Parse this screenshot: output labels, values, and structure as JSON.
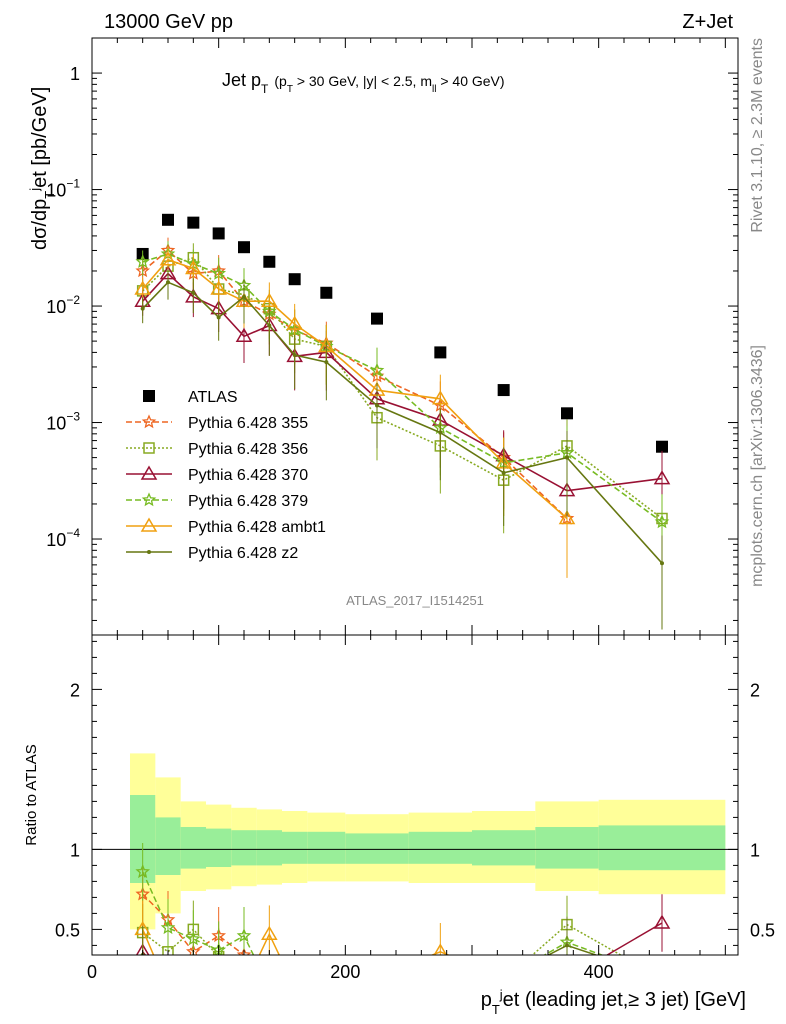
{
  "header": {
    "left": "13000 GeV pp",
    "right": "Z+Jet"
  },
  "side_labels": {
    "rivet": "Rivet 3.1.10, ≥ 2.3M events",
    "mcplots": "mcplots.cern.ch [arXiv:1306.3436]"
  },
  "analysis_label": "ATLAS_2017_I1514251",
  "chart_data": [
    {
      "type": "scatter",
      "panel": "main",
      "title_parts": {
        "main": "Jet p",
        "main_sub": "T",
        "cut_open": "(p",
        "cut_sub": "T",
        "cut_mid": " > 30 GeV, |y| < 2.5, m",
        "cut_sub2": "ll",
        "cut_close": " > 40 GeV)"
      },
      "ylabel_parts": {
        "a": "dσ/dp",
        "b": "T",
        "c": "j",
        "d": "et [pb/GeV]"
      },
      "yscale": "log",
      "ylim": [
        1.5e-05,
        2.0
      ],
      "xlim": [
        0,
        510
      ],
      "y_ticks": [
        {
          "v": 0.0001,
          "base": "10",
          "exp": "−4"
        },
        {
          "v": 0.001,
          "base": "10",
          "exp": "−3"
        },
        {
          "v": 0.01,
          "base": "10",
          "exp": "−2"
        },
        {
          "v": 0.1,
          "base": "10",
          "exp": "−1"
        },
        {
          "v": 1,
          "base": "1",
          "exp": ""
        }
      ],
      "x": [
        40,
        60,
        80,
        100,
        120,
        140,
        160,
        185,
        225,
        275,
        325,
        375,
        450
      ],
      "series": [
        {
          "name": "ATLAS",
          "marker": "square",
          "color": "#000000",
          "line": "none",
          "values": [
            0.028,
            0.055,
            0.052,
            0.042,
            0.032,
            0.024,
            0.017,
            0.013,
            0.0078,
            0.004,
            0.0019,
            0.0012,
            0.00062
          ]
        },
        {
          "name": "Pythia 6.428 355",
          "marker": "star",
          "color": "#ee6622",
          "line": "dashed",
          "values": [
            0.02,
            0.03,
            0.019,
            0.02,
            0.011,
            0.0085,
            0.0062,
            0.0048,
            0.0025,
            0.0014,
            0.0005,
            0.00015,
            null
          ]
        },
        {
          "name": "Pythia 6.428 356",
          "marker": "open-square",
          "color": "#88aa22",
          "line": "dotted",
          "values": [
            0.0135,
            0.022,
            0.026,
            0.014,
            0.0125,
            0.0095,
            0.0052,
            0.0045,
            0.0011,
            0.00063,
            0.00032,
            0.00063,
            0.00015
          ]
        },
        {
          "name": "Pythia 6.428 370",
          "marker": "open-triangle",
          "color": "#991133",
          "line": "solid",
          "values": [
            0.011,
            0.019,
            0.012,
            0.0095,
            0.0055,
            0.0068,
            0.0037,
            0.004,
            0.0016,
            0.00105,
            0.00052,
            0.00026,
            0.00033
          ]
        },
        {
          "name": "Pythia 6.428 379",
          "marker": "star",
          "color": "#77bb22",
          "line": "dashed",
          "values": [
            0.024,
            0.028,
            0.023,
            0.019,
            0.015,
            0.009,
            0.0063,
            0.0045,
            0.0028,
            0.0009,
            0.00045,
            0.00055,
            0.00014
          ]
        },
        {
          "name": "Pythia 6.428 ambt1",
          "marker": "open-triangle",
          "color": "#f0a010",
          "line": "solid",
          "values": [
            0.014,
            0.025,
            0.021,
            0.014,
            0.011,
            0.011,
            0.007,
            0.0045,
            0.0019,
            0.0016,
            0.00045,
            0.00015,
            null
          ]
        },
        {
          "name": "Pythia 6.428 z2",
          "marker": "dot",
          "color": "#667711",
          "line": "solid",
          "values": [
            0.0095,
            0.016,
            0.013,
            0.008,
            0.012,
            0.0068,
            0.0038,
            0.0033,
            0.0014,
            0.00082,
            0.00037,
            0.0005,
            6.2e-05
          ]
        }
      ]
    },
    {
      "type": "line",
      "panel": "ratio",
      "ylabel": "Ratio to ATLAS",
      "ylim": [
        0.34,
        2.34
      ],
      "xlim": [
        0,
        510
      ],
      "y_ticks": [
        {
          "v": 0.5,
          "label": "0.5"
        },
        {
          "v": 1,
          "label": "1"
        },
        {
          "v": 2,
          "label": "2"
        }
      ],
      "x_ticks": [
        {
          "v": 0,
          "label": "0"
        },
        {
          "v": 200,
          "label": "200"
        },
        {
          "v": 400,
          "label": "400"
        }
      ],
      "xlabel_parts": {
        "a": "p",
        "b": "T",
        "c": "j",
        "d": "et (leading jet,≥ 3 jet) [GeV]"
      },
      "bins": [
        30,
        50,
        70,
        90,
        110,
        130,
        150,
        170,
        200,
        250,
        300,
        350,
        400,
        500
      ],
      "band_outer": [
        [
          0.5,
          1.6
        ],
        [
          0.6,
          1.45
        ],
        [
          0.74,
          1.3
        ],
        [
          0.75,
          1.28
        ],
        [
          0.77,
          1.26
        ],
        [
          0.78,
          1.25
        ],
        [
          0.79,
          1.24
        ],
        [
          0.8,
          1.23
        ],
        [
          0.8,
          1.22
        ],
        [
          0.79,
          1.23
        ],
        [
          0.79,
          1.24
        ],
        [
          0.74,
          1.3
        ],
        [
          0.72,
          1.31
        ]
      ],
      "band_inner": [
        [
          0.79,
          1.34
        ],
        [
          0.84,
          1.2
        ],
        [
          0.88,
          1.14
        ],
        [
          0.89,
          1.13
        ],
        [
          0.9,
          1.12
        ],
        [
          0.9,
          1.12
        ],
        [
          0.91,
          1.11
        ],
        [
          0.91,
          1.11
        ],
        [
          0.91,
          1.1
        ],
        [
          0.91,
          1.11
        ],
        [
          0.9,
          1.12
        ],
        [
          0.88,
          1.14
        ],
        [
          0.87,
          1.15
        ]
      ],
      "x": [
        40,
        60,
        80,
        100,
        120,
        140,
        160,
        185,
        225,
        275,
        325,
        375,
        450
      ],
      "series": [
        {
          "name": "Pythia 6.428 355",
          "color": "#ee6622",
          "line": "dashed",
          "marker": "star",
          "values": [
            0.72,
            0.56,
            0.36,
            0.46,
            0.34,
            null,
            null,
            null,
            null,
            null,
            null,
            null,
            null
          ]
        },
        {
          "name": "Pythia 6.428 356",
          "color": "#88aa22",
          "line": "dotted",
          "marker": "open-square",
          "values": [
            0.48,
            0.36,
            0.5,
            0.33,
            null,
            null,
            null,
            null,
            null,
            null,
            null,
            0.53,
            null
          ]
        },
        {
          "name": "Pythia 6.428 370",
          "color": "#991133",
          "line": "solid",
          "marker": "open-triangle",
          "values": [
            0.36,
            null,
            null,
            null,
            null,
            null,
            null,
            null,
            null,
            null,
            null,
            null,
            0.54
          ]
        },
        {
          "name": "Pythia 6.428 379",
          "color": "#77bb22",
          "line": "dashed",
          "marker": "star",
          "values": [
            0.86,
            0.51,
            0.44,
            0.37,
            0.46,
            null,
            null,
            null,
            null,
            null,
            null,
            0.42,
            null
          ]
        },
        {
          "name": "Pythia 6.428 ambt1",
          "color": "#f0a010",
          "line": "solid",
          "marker": "open-triangle",
          "values": [
            0.5,
            null,
            null,
            null,
            null,
            0.47,
            null,
            null,
            null,
            0.36,
            null,
            null,
            null
          ]
        },
        {
          "name": "Pythia 6.428 z2",
          "color": "#667711",
          "line": "solid",
          "marker": "dot",
          "values": [
            0.34,
            null,
            null,
            null,
            null,
            null,
            null,
            null,
            null,
            null,
            null,
            0.4,
            null
          ]
        }
      ]
    }
  ]
}
